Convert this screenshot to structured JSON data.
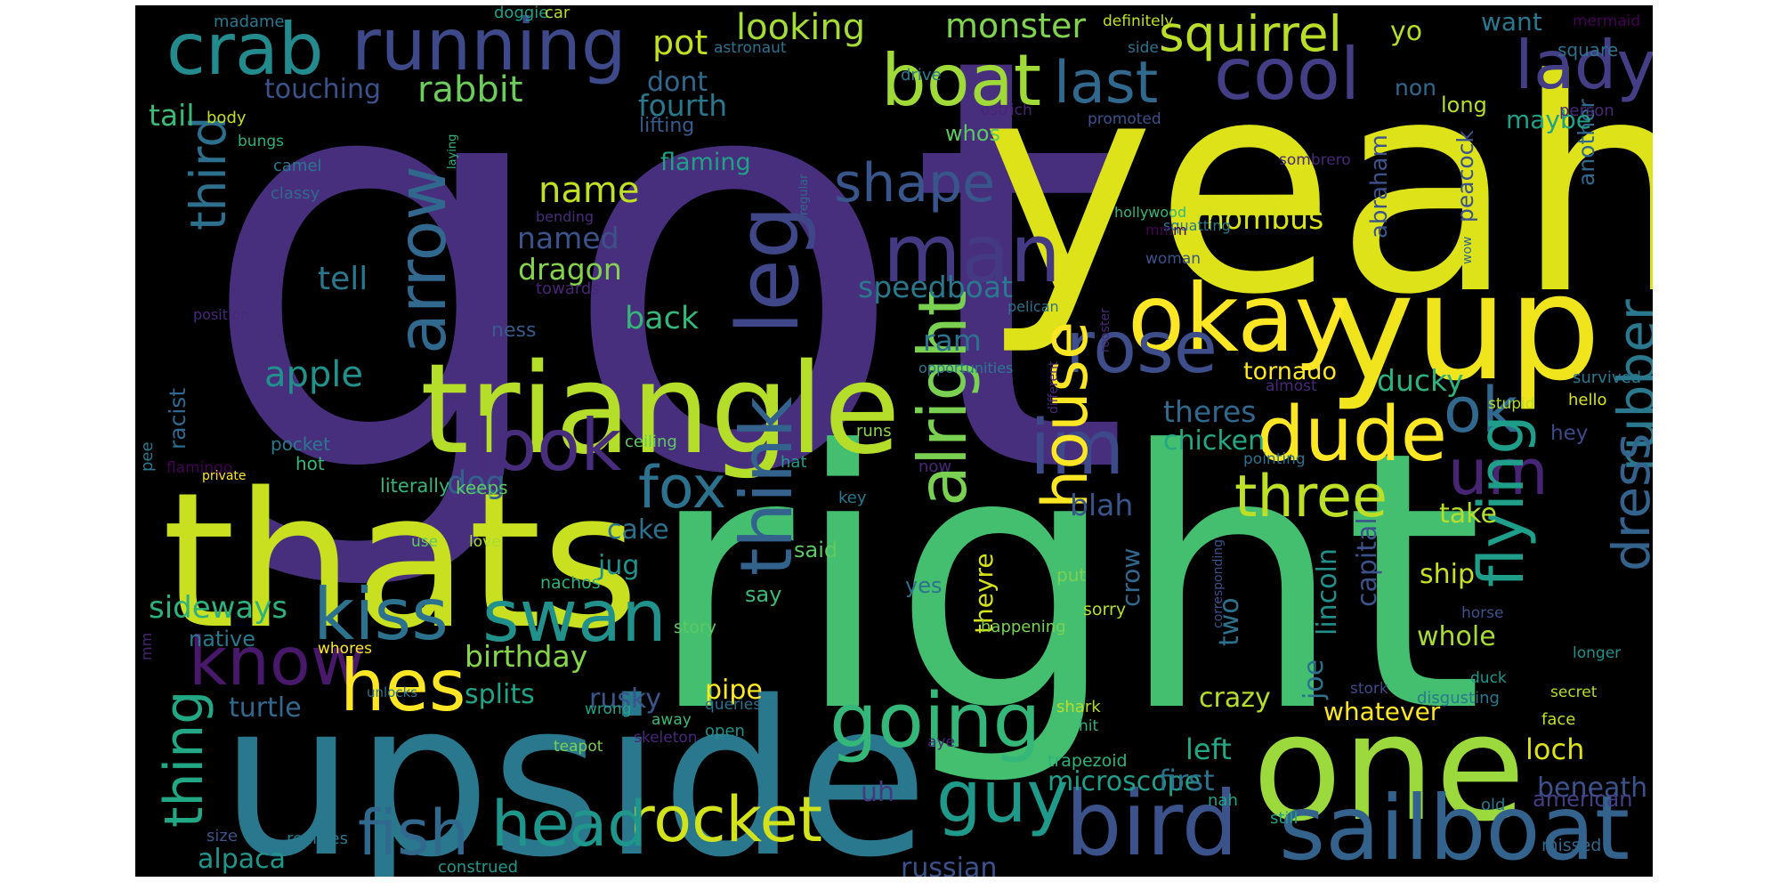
{
  "words": [
    {
      "text": "got",
      "color": "#472f7d"
    },
    {
      "text": "right",
      "color": "#44bf70"
    },
    {
      "text": "yeah",
      "color": "#dde318"
    },
    {
      "text": "upside",
      "color": "#2a788e"
    },
    {
      "text": "thats",
      "color": "#c8e020"
    },
    {
      "text": "one",
      "color": "#9bd93c"
    },
    {
      "text": "yup",
      "color": "#f0e51c"
    },
    {
      "text": "triangle",
      "color": "#b5de2b"
    },
    {
      "text": "okay",
      "color": "#fde725"
    },
    {
      "text": "bird",
      "color": "#3b528b"
    },
    {
      "text": "sailboat",
      "color": "#33638d"
    },
    {
      "text": "crab",
      "color": "#238a8d"
    },
    {
      "text": "running",
      "color": "#3e4989"
    },
    {
      "text": "boat",
      "color": "#a0da39"
    },
    {
      "text": "cool",
      "color": "#433e85"
    },
    {
      "text": "lady",
      "color": "#433e85"
    },
    {
      "text": "squirrel",
      "color": "#b8de29"
    },
    {
      "text": "last",
      "color": "#31688e"
    },
    {
      "text": "man",
      "color": "#443983"
    },
    {
      "text": "shape",
      "color": "#39568c"
    },
    {
      "text": "dude",
      "color": "#fde725"
    },
    {
      "text": "three",
      "color": "#bddf26"
    },
    {
      "text": "rose",
      "color": "#3d4e8a"
    },
    {
      "text": "guy",
      "color": "#1f9a8a"
    },
    {
      "text": "going",
      "color": "#35b779"
    },
    {
      "text": "rocket",
      "color": "#d2e21b"
    },
    {
      "text": "head",
      "color": "#1f968b"
    },
    {
      "text": "fish",
      "color": "#31688e"
    },
    {
      "text": "kiss",
      "color": "#2c728e"
    },
    {
      "text": "swan",
      "color": "#21918c"
    },
    {
      "text": "know",
      "color": "#48186a"
    },
    {
      "text": "hes",
      "color": "#fde725"
    },
    {
      "text": "look",
      "color": "#472d7b"
    },
    {
      "text": "fox",
      "color": "#2c728e"
    },
    {
      "text": "im",
      "color": "#3e4989"
    },
    {
      "text": "ok",
      "color": "#31688e"
    },
    {
      "text": "um",
      "color": "#482475"
    },
    {
      "text": "leg",
      "color": "#3f4788"
    },
    {
      "text": "arrow",
      "color": "#31688e"
    },
    {
      "text": "think",
      "color": "#33638d"
    },
    {
      "text": "alright",
      "color": "#7ad151"
    },
    {
      "text": "house",
      "color": "#fde725"
    },
    {
      "text": "flying",
      "color": "#1f9e89"
    },
    {
      "text": "rubber",
      "color": "#2a788e"
    },
    {
      "text": "dress",
      "color": "#33638d"
    },
    {
      "text": "third",
      "color": "#2d708e"
    },
    {
      "text": "thing",
      "color": "#22a884"
    },
    {
      "text": "rabbit",
      "color": "#6ccd5a"
    },
    {
      "text": "looking",
      "color": "#a5db36"
    },
    {
      "text": "pot",
      "color": "#c2df23"
    },
    {
      "text": "monster",
      "color": "#7fd34e"
    },
    {
      "text": "touching",
      "color": "#3b528b"
    },
    {
      "text": "tail",
      "color": "#3aba76"
    },
    {
      "text": "fourth",
      "color": "#2a788e"
    },
    {
      "text": "dont",
      "color": "#31688e"
    },
    {
      "text": "lifting",
      "color": "#375b8d"
    },
    {
      "text": "flaming",
      "color": "#1fa187"
    },
    {
      "text": "name",
      "color": "#c2df23"
    },
    {
      "text": "named",
      "color": "#3b528b"
    },
    {
      "text": "dragon",
      "color": "#84d44b"
    },
    {
      "text": "tell",
      "color": "#2a788e"
    },
    {
      "text": "apple",
      "color": "#21918c"
    },
    {
      "text": "back",
      "color": "#35b779"
    },
    {
      "text": "speedboat",
      "color": "#2a788e"
    },
    {
      "text": "ram",
      "color": "#2c728e"
    },
    {
      "text": "dog",
      "color": "#34608d"
    },
    {
      "text": "racist",
      "color": "#31688e"
    },
    {
      "text": "cake",
      "color": "#2c728e"
    },
    {
      "text": "jug",
      "color": "#21918c"
    },
    {
      "text": "sideways",
      "color": "#2db27d"
    },
    {
      "text": "birthday",
      "color": "#86d549"
    },
    {
      "text": "splits",
      "color": "#20a486"
    },
    {
      "text": "native",
      "color": "#2a788e"
    },
    {
      "text": "turtle",
      "color": "#31688e"
    },
    {
      "text": "pipe",
      "color": "#fde725"
    },
    {
      "text": "rusky",
      "color": "#39568c"
    },
    {
      "text": "alpaca",
      "color": "#1f968b"
    },
    {
      "text": "russian",
      "color": "#3b528b"
    },
    {
      "text": "microscope",
      "color": "#1f9e89"
    },
    {
      "text": "uh",
      "color": "#443983"
    },
    {
      "text": "blah",
      "color": "#39568c"
    },
    {
      "text": "theres",
      "color": "#31688e"
    },
    {
      "text": "chicken",
      "color": "#22a884"
    },
    {
      "text": "rhombus",
      "color": "#d8e219"
    },
    {
      "text": "tornado",
      "color": "#fde725"
    },
    {
      "text": "ducky",
      "color": "#2db27d"
    },
    {
      "text": "take",
      "color": "#b5de2b"
    },
    {
      "text": "ship",
      "color": "#c8e020"
    },
    {
      "text": "whole",
      "color": "#a8db34"
    },
    {
      "text": "two",
      "color": "#2c728e"
    },
    {
      "text": "crow",
      "color": "#31688e"
    },
    {
      "text": "theyre",
      "color": "#d5e21a"
    },
    {
      "text": "crazy",
      "color": "#b5de2b"
    },
    {
      "text": "whatever",
      "color": "#fde725"
    },
    {
      "text": "left",
      "color": "#22a884"
    },
    {
      "text": "first",
      "color": "#2c728e"
    },
    {
      "text": "loch",
      "color": "#dde318"
    },
    {
      "text": "beneath",
      "color": "#3b528b"
    },
    {
      "text": "american",
      "color": "#433e85"
    },
    {
      "text": "lincoln",
      "color": "#21918c"
    },
    {
      "text": "joe",
      "color": "#2c728e"
    },
    {
      "text": "capital",
      "color": "#3b528b"
    },
    {
      "text": "abraham",
      "color": "#3b528b"
    },
    {
      "text": "peacock",
      "color": "#3b528b"
    },
    {
      "text": "another",
      "color": "#31688e"
    },
    {
      "text": "long",
      "color": "#b5de2b"
    },
    {
      "text": "maybe",
      "color": "#1fa187"
    },
    {
      "text": "non",
      "color": "#31688e"
    },
    {
      "text": "yo",
      "color": "#b5de2b"
    },
    {
      "text": "want",
      "color": "#2a788e"
    },
    {
      "text": "square",
      "color": "#2c728e"
    },
    {
      "text": "hey",
      "color": "#3e4989"
    },
    {
      "text": "whos",
      "color": "#5ec962"
    },
    {
      "text": "say",
      "color": "#3aba76"
    },
    {
      "text": "said",
      "color": "#5ec962"
    },
    {
      "text": "yes",
      "color": "#2c728e"
    },
    {
      "text": "ness",
      "color": "#375b8d"
    },
    {
      "text": "hot",
      "color": "#35b779"
    },
    {
      "text": "literally",
      "color": "#35b779"
    },
    {
      "text": "keeps",
      "color": "#5ec962"
    },
    {
      "text": "pocket",
      "color": "#2a788e"
    },
    {
      "text": "ceiling",
      "color": "#5ec962"
    },
    {
      "text": "runs",
      "color": "#8fd744"
    },
    {
      "text": "hat",
      "color": "#1f9e89"
    },
    {
      "text": "now",
      "color": "#482878"
    },
    {
      "text": "key",
      "color": "#2a788e"
    },
    {
      "text": "use",
      "color": "#5ec962"
    },
    {
      "text": "love",
      "color": "#a8db34"
    },
    {
      "text": "put",
      "color": "#7ad151"
    },
    {
      "text": "nachos",
      "color": "#2db27d"
    },
    {
      "text": "story",
      "color": "#5ec962"
    },
    {
      "text": "sorry",
      "color": "#b5de2b"
    },
    {
      "text": "happening",
      "color": "#7ad151"
    },
    {
      "text": "shark",
      "color": "#b5de2b"
    },
    {
      "text": "hit",
      "color": "#2db27d"
    },
    {
      "text": "aye",
      "color": "#482475"
    },
    {
      "text": "trapezoid",
      "color": "#2db27d"
    },
    {
      "text": "nah",
      "color": "#20a486"
    },
    {
      "text": "still",
      "color": "#1fa187"
    },
    {
      "text": "wrong",
      "color": "#20a486"
    },
    {
      "text": "away",
      "color": "#3aba76"
    },
    {
      "text": "open",
      "color": "#21918c"
    },
    {
      "text": "teapot",
      "color": "#7ad151"
    },
    {
      "text": "skeleton",
      "color": "#482878"
    },
    {
      "text": "queries",
      "color": "#2c728e"
    },
    {
      "text": "disgusting",
      "color": "#2a788e"
    },
    {
      "text": "whores",
      "color": "#fde725"
    },
    {
      "text": "size",
      "color": "#3b528b"
    },
    {
      "text": "realizes",
      "color": "#2a788e"
    },
    {
      "text": "construed",
      "color": "#1f968b"
    },
    {
      "text": "old",
      "color": "#2a788e"
    },
    {
      "text": "missed",
      "color": "#31688e"
    },
    {
      "text": "longer",
      "color": "#21918c"
    },
    {
      "text": "secret",
      "color": "#b5de2b"
    },
    {
      "text": "face",
      "color": "#c2df23"
    },
    {
      "text": "duck",
      "color": "#1f968b"
    },
    {
      "text": "horse",
      "color": "#3b528b"
    },
    {
      "text": "pointing",
      "color": "#2c728e"
    },
    {
      "text": "survived",
      "color": "#2a788e"
    },
    {
      "text": "hello",
      "color": "#d8e219"
    },
    {
      "text": "stupid",
      "color": "#b5de2b"
    },
    {
      "text": "person",
      "color": "#482878"
    },
    {
      "text": "mermaid",
      "color": "#440154"
    },
    {
      "text": "madame",
      "color": "#2a788e"
    },
    {
      "text": "doggie",
      "color": "#1fa187"
    },
    {
      "text": "car",
      "color": "#b5de2b"
    },
    {
      "text": "astronaut",
      "color": "#2c728e"
    },
    {
      "text": "body",
      "color": "#c2df23"
    },
    {
      "text": "bungs",
      "color": "#2db27d"
    },
    {
      "text": "camel",
      "color": "#2a788e"
    },
    {
      "text": "classy",
      "color": "#31688e"
    },
    {
      "text": "laying",
      "color": "#2db27d"
    },
    {
      "text": "bending",
      "color": "#472d7b"
    },
    {
      "text": "towards",
      "color": "#482475"
    },
    {
      "text": "position",
      "color": "#482878"
    },
    {
      "text": "pee",
      "color": "#2a788e"
    },
    {
      "text": "flamingo",
      "color": "#440154"
    },
    {
      "text": "private",
      "color": "#fde725"
    },
    {
      "text": "mm",
      "color": "#482475"
    },
    {
      "text": "unlocks",
      "color": "#2c728e"
    },
    {
      "text": "ostrich",
      "color": "#482475"
    },
    {
      "text": "drive",
      "color": "#2a788e"
    },
    {
      "text": "definitely",
      "color": "#c2df23"
    },
    {
      "text": "side",
      "color": "#2c728e"
    },
    {
      "text": "promoted",
      "color": "#3b528b"
    },
    {
      "text": "sombrero",
      "color": "#482878"
    },
    {
      "text": "hollywood",
      "color": "#35b779"
    },
    {
      "text": "squatting",
      "color": "#2a788e"
    },
    {
      "text": "mmm",
      "color": "#440154"
    },
    {
      "text": "woman",
      "color": "#3b528b"
    },
    {
      "text": "pelican",
      "color": "#2c728e"
    },
    {
      "text": "regular",
      "color": "#31688e"
    },
    {
      "text": "opportunities",
      "color": "#2a788e"
    },
    {
      "text": "rooster",
      "color": "#482878"
    },
    {
      "text": "wow",
      "color": "#31688e"
    },
    {
      "text": "almost",
      "color": "#482878"
    },
    {
      "text": "different",
      "color": "#482878"
    },
    {
      "text": "corresponding",
      "color": "#3b528b"
    },
    {
      "text": "stork",
      "color": "#3e4989"
    },
    {
      "text": "lg",
      "color": "#482878"
    }
  ]
}
